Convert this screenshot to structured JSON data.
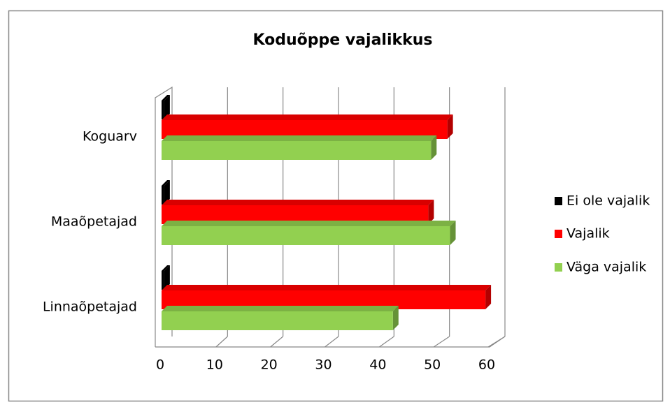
{
  "chart_data": {
    "type": "bar3d_horizontal",
    "title": "Koduõppe vajalikkus",
    "categories": [
      "Linnaõpetajad",
      "Maaõpetajad",
      "Koguarv"
    ],
    "series": [
      {
        "name": "Ei ole vajalik",
        "color": "#000000",
        "values": [
          0.5,
          0.5,
          0.5
        ]
      },
      {
        "name": "Vajalik",
        "color": "#ff0000",
        "values": [
          59.5,
          49,
          52.5
        ]
      },
      {
        "name": "Väga vajalik",
        "color": "#92d050",
        "values": [
          42.5,
          53,
          49.5
        ]
      }
    ],
    "xlim": [
      0,
      60
    ],
    "xticks": [
      0,
      10,
      20,
      30,
      40,
      50,
      60
    ],
    "grid": true,
    "legend": "right"
  }
}
